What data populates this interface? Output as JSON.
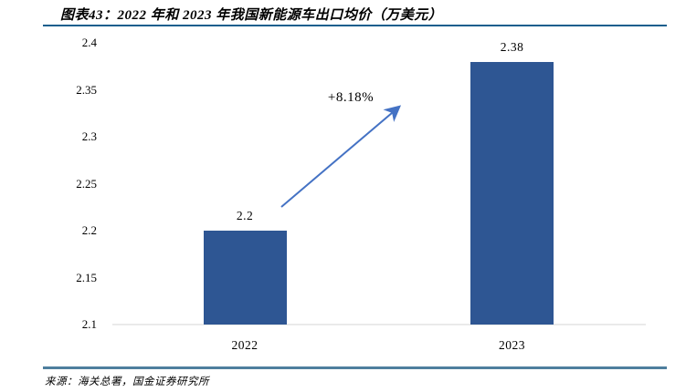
{
  "title": "图表43：2022 年和 2023 年我国新能源车出口均价（万美元）",
  "source": "来源：海关总署，国金证券研究所",
  "colors": {
    "bar": "#2E5693",
    "arrow": "#4472C4",
    "title_rule": "#155E8D",
    "bottom_rule": "#4E7F9E",
    "baseline": "#EAEAEA"
  },
  "chart_data": {
    "type": "bar",
    "title": "图表43：2022 年和 2023 年我国新能源车出口均价（万美元）",
    "categories": [
      "2022",
      "2023"
    ],
    "values": [
      2.2,
      2.38
    ],
    "value_labels": [
      "2.2",
      "2.38"
    ],
    "xlabel": "",
    "ylabel": "",
    "ylim": [
      2.1,
      2.4
    ],
    "yticks": [
      2.1,
      2.15,
      2.2,
      2.25,
      2.3,
      2.35,
      2.4
    ],
    "ytick_labels": [
      "2.1",
      "2.15",
      "2.2",
      "2.25",
      "2.3",
      "2.35",
      "2.4"
    ],
    "grid": false,
    "legend": null,
    "annotation": {
      "text": "+8.18%"
    }
  }
}
